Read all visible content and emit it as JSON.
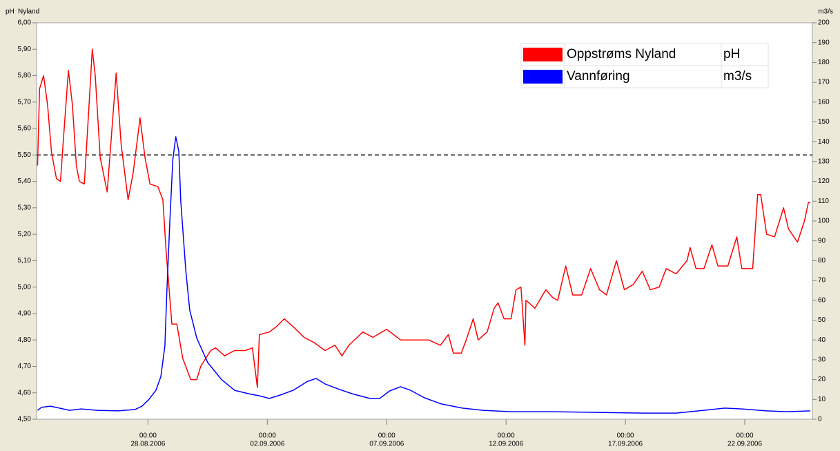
{
  "chart_data": {
    "type": "line",
    "title": "Nyland",
    "ylabel": "pH",
    "y2label": "m3/s",
    "xlim": [
      "2006-08-23 08:00",
      "2006-09-24 20:00"
    ],
    "xticks": [
      {
        "value": "2006-08-28 00:00",
        "label": [
          "00:00",
          "28.08.2006"
        ]
      },
      {
        "value": "2006-09-02 00:00",
        "label": [
          "00:00",
          "02.09.2006"
        ]
      },
      {
        "value": "2006-09-07 00:00",
        "label": [
          "00:00",
          "07.09.2006"
        ]
      },
      {
        "value": "2006-09-12 00:00",
        "label": [
          "00:00",
          "12.09.2006"
        ]
      },
      {
        "value": "2006-09-17 00:00",
        "label": [
          "00:00",
          "17.09.2006"
        ]
      },
      {
        "value": "2006-09-22 00:00",
        "label": [
          "00:00",
          "22.09.2006"
        ]
      }
    ],
    "ylim": [
      4.5,
      6.0
    ],
    "yticks": [
      {
        "value": 4.5,
        "label": "4,50"
      },
      {
        "value": 4.6,
        "label": "4,60"
      },
      {
        "value": 4.7,
        "label": "4,70"
      },
      {
        "value": 4.8,
        "label": "4,80"
      },
      {
        "value": 4.9,
        "label": "4,90"
      },
      {
        "value": 5.0,
        "label": "5,00"
      },
      {
        "value": 5.1,
        "label": "5,10"
      },
      {
        "value": 5.2,
        "label": "5,20"
      },
      {
        "value": 5.3,
        "label": "5,30"
      },
      {
        "value": 5.4,
        "label": "5,40"
      },
      {
        "value": 5.5,
        "label": "5,50"
      },
      {
        "value": 5.6,
        "label": "5,60"
      },
      {
        "value": 5.7,
        "label": "5,70"
      },
      {
        "value": 5.8,
        "label": "5,80"
      },
      {
        "value": 5.9,
        "label": "5,90"
      },
      {
        "value": 6.0,
        "label": "6,00"
      }
    ],
    "y2lim": [
      0,
      200
    ],
    "y2ticks": [
      0,
      10,
      20,
      30,
      40,
      50,
      60,
      70,
      80,
      90,
      100,
      110,
      120,
      130,
      140,
      150,
      160,
      170,
      180,
      190,
      200
    ],
    "reference_line": {
      "value": 5.5,
      "color": "#000000"
    },
    "grid": false,
    "legend": "top-right",
    "series": [
      {
        "name": "Oppstrøms Nyland",
        "unit": "pH",
        "color": "#ff0000",
        "axis": "y",
        "x": [
          "2006-08-23 09:00",
          "2006-08-23 11:00",
          "2006-08-23 15:00",
          "2006-08-23 19:00",
          "2006-08-23 23:00",
          "2006-08-24 04:00",
          "2006-08-24 08:00",
          "2006-08-24 11:00",
          "2006-08-24 16:00",
          "2006-08-24 20:00",
          "2006-08-25 00:00",
          "2006-08-25 03:00",
          "2006-08-25 08:00",
          "2006-08-25 12:00",
          "2006-08-25 16:00",
          "2006-08-25 19:00",
          "2006-08-26 00:00",
          "2006-08-26 07:00",
          "2006-08-26 11:00",
          "2006-08-26 16:00",
          "2006-08-26 21:00",
          "2006-08-27 04:00",
          "2006-08-27 09:00",
          "2006-08-27 16:00",
          "2006-08-27 21:00",
          "2006-08-28 02:00",
          "2006-08-28 10:00",
          "2006-08-28 15:00",
          "2006-08-28 18:00",
          "2006-08-29 00:00",
          "2006-08-29 05:00",
          "2006-08-29 11:00",
          "2006-08-29 19:00",
          "2006-08-30 01:00",
          "2006-08-30 05:00",
          "2006-08-30 15:00",
          "2006-08-30 20:00",
          "2006-08-31 05:00",
          "2006-08-31 15:00",
          "2006-09-01 02:00",
          "2006-09-01 09:00",
          "2006-09-01 14:00",
          "2006-09-01 16:00",
          "2006-09-02 02:00",
          "2006-09-02 09:00",
          "2006-09-02 17:00",
          "2006-09-03 02:00",
          "2006-09-03 13:00",
          "2006-09-03 23:00",
          "2006-09-04 10:00",
          "2006-09-04 20:00",
          "2006-09-05 03:00",
          "2006-09-05 10:00",
          "2006-09-06 00:00",
          "2006-09-06 10:00",
          "2006-09-07 00:00",
          "2006-09-07 14:00",
          "2006-09-08 04:00",
          "2006-09-08 18:00",
          "2006-09-09 06:00",
          "2006-09-09 14:00",
          "2006-09-09 19:00",
          "2006-09-10 03:00",
          "2006-09-10 08:00",
          "2006-09-10 15:00",
          "2006-09-10 20:00",
          "2006-09-11 05:00",
          "2006-09-11 12:00",
          "2006-09-11 16:00",
          "2006-09-11 22:00",
          "2006-09-12 05:00",
          "2006-09-12 10:00",
          "2006-09-12 15:00",
          "2006-09-12 19:00",
          "2006-09-12 20:00",
          "2006-09-13 05:00",
          "2006-09-13 16:00",
          "2006-09-13 23:00",
          "2006-09-14 04:00",
          "2006-09-14 12:00",
          "2006-09-14 19:00",
          "2006-09-15 04:00",
          "2006-09-15 13:00",
          "2006-09-15 22:00",
          "2006-09-16 05:00",
          "2006-09-16 15:00",
          "2006-09-16 23:00",
          "2006-09-17 08:00",
          "2006-09-17 17:00",
          "2006-09-18 01:00",
          "2006-09-18 10:00",
          "2006-09-18 17:00",
          "2006-09-19 03:00",
          "2006-09-19 14:00",
          "2006-09-19 17:00",
          "2006-09-19 23:00",
          "2006-09-20 07:00",
          "2006-09-20 15:00",
          "2006-09-20 21:00",
          "2006-09-21 07:00",
          "2006-09-21 16:00",
          "2006-09-21 21:00",
          "2006-09-22 08:00",
          "2006-09-22 13:00",
          "2006-09-22 16:00",
          "2006-09-22 22:00",
          "2006-09-23 06:00",
          "2006-09-23 15:00",
          "2006-09-23 20:00",
          "2006-09-24 05:00",
          "2006-09-24 12:00",
          "2006-09-24 16:00",
          "2006-09-24 18:00"
        ],
        "values": [
          5.46,
          5.75,
          5.8,
          5.69,
          5.51,
          5.41,
          5.4,
          5.56,
          5.82,
          5.69,
          5.46,
          5.4,
          5.39,
          5.64,
          5.9,
          5.8,
          5.49,
          5.36,
          5.56,
          5.81,
          5.54,
          5.33,
          5.43,
          5.64,
          5.49,
          5.39,
          5.38,
          5.33,
          5.15,
          4.86,
          4.86,
          4.73,
          4.65,
          4.65,
          4.7,
          4.76,
          4.77,
          4.74,
          4.76,
          4.76,
          4.77,
          4.62,
          4.82,
          4.83,
          4.85,
          4.88,
          4.85,
          4.81,
          4.79,
          4.76,
          4.78,
          4.74,
          4.78,
          4.83,
          4.81,
          4.84,
          4.8,
          4.8,
          4.8,
          4.78,
          4.82,
          4.75,
          4.75,
          4.8,
          4.88,
          4.8,
          4.83,
          4.92,
          4.94,
          4.88,
          4.88,
          4.99,
          5.0,
          4.78,
          4.95,
          4.92,
          4.99,
          4.96,
          4.95,
          5.08,
          4.97,
          4.97,
          5.07,
          4.99,
          4.97,
          5.1,
          4.99,
          5.01,
          5.06,
          4.99,
          5.0,
          5.07,
          5.05,
          5.1,
          5.15,
          5.07,
          5.07,
          5.16,
          5.08,
          5.08,
          5.19,
          5.07,
          5.07,
          5.35,
          5.35,
          5.2,
          5.19,
          5.3,
          5.22,
          5.17,
          5.25,
          5.32,
          5.32
        ]
      },
      {
        "name": "Vannføring",
        "unit": "m3/s",
        "color": "#0000ff",
        "axis": "y2",
        "x": [
          "2006-08-23 09:00",
          "2006-08-23 13:00",
          "2006-08-23 22:00",
          "2006-08-24 07:00",
          "2006-08-24 17:00",
          "2006-08-25 05:00",
          "2006-08-25 21:00",
          "2006-08-26 18:00",
          "2006-08-27 11:00",
          "2006-08-27 18:00",
          "2006-08-28 01:00",
          "2006-08-28 08:00",
          "2006-08-28 13:00",
          "2006-08-28 17:00",
          "2006-08-28 19:00",
          "2006-08-28 22:00",
          "2006-08-29 01:00",
          "2006-08-29 04:00",
          "2006-08-29 07:00",
          "2006-08-29 09:00",
          "2006-08-29 14:00",
          "2006-08-29 18:00",
          "2006-08-30 01:00",
          "2006-08-30 12:00",
          "2006-08-31 02:00",
          "2006-08-31 15:00",
          "2006-09-01 05:00",
          "2006-09-01 16:00",
          "2006-09-02 02:00",
          "2006-09-02 13:00",
          "2006-09-03 02:00",
          "2006-09-03 16:00",
          "2006-09-04 01:00",
          "2006-09-04 10:00",
          "2006-09-04 23:00",
          "2006-09-05 13:00",
          "2006-09-06 07:00",
          "2006-09-06 17:00",
          "2006-09-07 03:00",
          "2006-09-07 14:00",
          "2006-09-08 00:00",
          "2006-09-08 14:00",
          "2006-09-09 07:00",
          "2006-09-10 04:00",
          "2006-09-11 01:00",
          "2006-09-12 05:00",
          "2006-09-13 23:00",
          "2006-09-15 16:00",
          "2006-09-17 17:00",
          "2006-09-19 03:00",
          "2006-09-20 07:00",
          "2006-09-21 04:00",
          "2006-09-21 21:00",
          "2006-09-22 22:00",
          "2006-09-23 18:00",
          "2006-09-24 18:00"
        ],
        "values": [
          4.5,
          6.0,
          6.6,
          5.6,
          4.5,
          5.2,
          4.5,
          4.2,
          4.9,
          6.6,
          10.0,
          14.6,
          21.6,
          37.0,
          65.0,
          100.0,
          131.0,
          142.5,
          135.0,
          110.0,
          75.0,
          55.0,
          41.0,
          28.6,
          20.0,
          14.6,
          12.9,
          11.8,
          10.5,
          12.2,
          14.6,
          19.0,
          20.6,
          17.8,
          15.3,
          12.9,
          10.5,
          10.5,
          14.3,
          16.4,
          14.6,
          10.8,
          7.7,
          5.6,
          4.5,
          3.8,
          3.8,
          3.5,
          3.1,
          3.1,
          4.5,
          5.6,
          5.2,
          4.2,
          3.8,
          4.2
        ]
      }
    ]
  }
}
